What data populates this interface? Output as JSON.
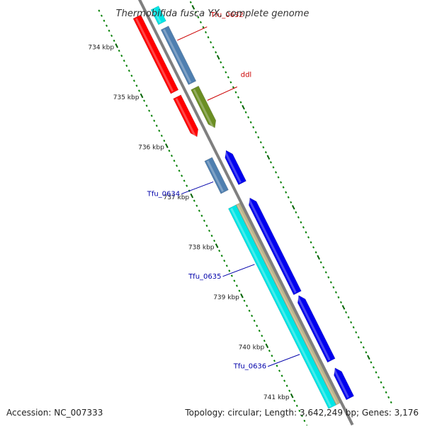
{
  "title": "Thermobifida fusca YX, complete genome",
  "footer": {
    "accession": "Accession: NC_007333",
    "summary": "Topology: circular; Length: 3,642,249 bp; Genes: 3,176"
  },
  "colors": {
    "backbone": "#7f7f7f",
    "tick_minor": "#008000",
    "tick_major": "#006400",
    "red": "#ff0000",
    "steelblue": "#4f7fb0",
    "olive": "#6b8e23",
    "blue": "#0000ee",
    "cyan": "#00e5e5",
    "tan": "#bdb58a",
    "label_red": "#cc0000",
    "label_blue": "#0000aa"
  },
  "scale": {
    "ticks": [
      {
        "label": "734 kbp",
        "kbp": 734
      },
      {
        "label": "735 kbp",
        "kbp": 735
      },
      {
        "label": "736 kbp",
        "kbp": 736
      },
      {
        "label": "737 kbp",
        "kbp": 737
      },
      {
        "label": "738 kbp",
        "kbp": 738
      },
      {
        "label": "739 kbp",
        "kbp": 739
      },
      {
        "label": "740 kbp",
        "kbp": 740
      },
      {
        "label": "741 kbp",
        "kbp": 741
      }
    ]
  },
  "features": [
    {
      "track": "cds_outer",
      "start_kbp": 733.7,
      "end_kbp": 734.0,
      "color": "cyan",
      "arrow": "none"
    },
    {
      "track": "cds_outer",
      "start_kbp": 734.1,
      "end_kbp": 735.2,
      "color": "steelblue",
      "arrow": "none"
    },
    {
      "track": "cds_outer",
      "start_kbp": 735.3,
      "end_kbp": 736.1,
      "color": "olive",
      "arrow": "end"
    },
    {
      "track": "cds_outer",
      "start_kbp": 736.55,
      "end_kbp": 737.2,
      "color": "blue",
      "arrow": "start"
    },
    {
      "track": "cds_outer",
      "start_kbp": 737.5,
      "end_kbp": 739.4,
      "color": "blue",
      "arrow": "start"
    },
    {
      "track": "cds_outer",
      "start_kbp": 739.45,
      "end_kbp": 740.75,
      "color": "blue",
      "arrow": "start"
    },
    {
      "track": "cds_outer",
      "start_kbp": 740.9,
      "end_kbp": 741.5,
      "color": "blue",
      "arrow": "start"
    },
    {
      "track": "gene_outer",
      "start_kbp": 733.7,
      "end_kbp": 735.2,
      "color": "red",
      "arrow": "none"
    },
    {
      "track": "gene_outer",
      "start_kbp": 735.3,
      "end_kbp": 736.1,
      "color": "red",
      "arrow": "end"
    },
    {
      "track": "gene_inner",
      "start_kbp": 736.55,
      "end_kbp": 737.2,
      "color": "steelblue",
      "arrow": "none"
    },
    {
      "track": "gene_inner",
      "start_kbp": 737.5,
      "end_kbp": 741.5,
      "color": "cyan",
      "arrow": "none"
    },
    {
      "track": "gene_tan",
      "start_kbp": 737.5,
      "end_kbp": 741.5,
      "color": "tan",
      "arrow": "none"
    }
  ],
  "gene_labels": [
    {
      "text": "Tfu_0632",
      "kbp": 734.4,
      "side": "right",
      "color": "label_red"
    },
    {
      "text": "ddl",
      "kbp": 735.6,
      "side": "right",
      "color": "label_red"
    },
    {
      "text": "Tfu_0634",
      "kbp": 736.95,
      "side": "left",
      "color": "label_blue"
    },
    {
      "text": "Tfu_0635",
      "kbp": 738.6,
      "side": "left",
      "color": "label_blue"
    },
    {
      "text": "Tfu_0636",
      "kbp": 740.4,
      "side": "left",
      "color": "label_blue"
    }
  ]
}
